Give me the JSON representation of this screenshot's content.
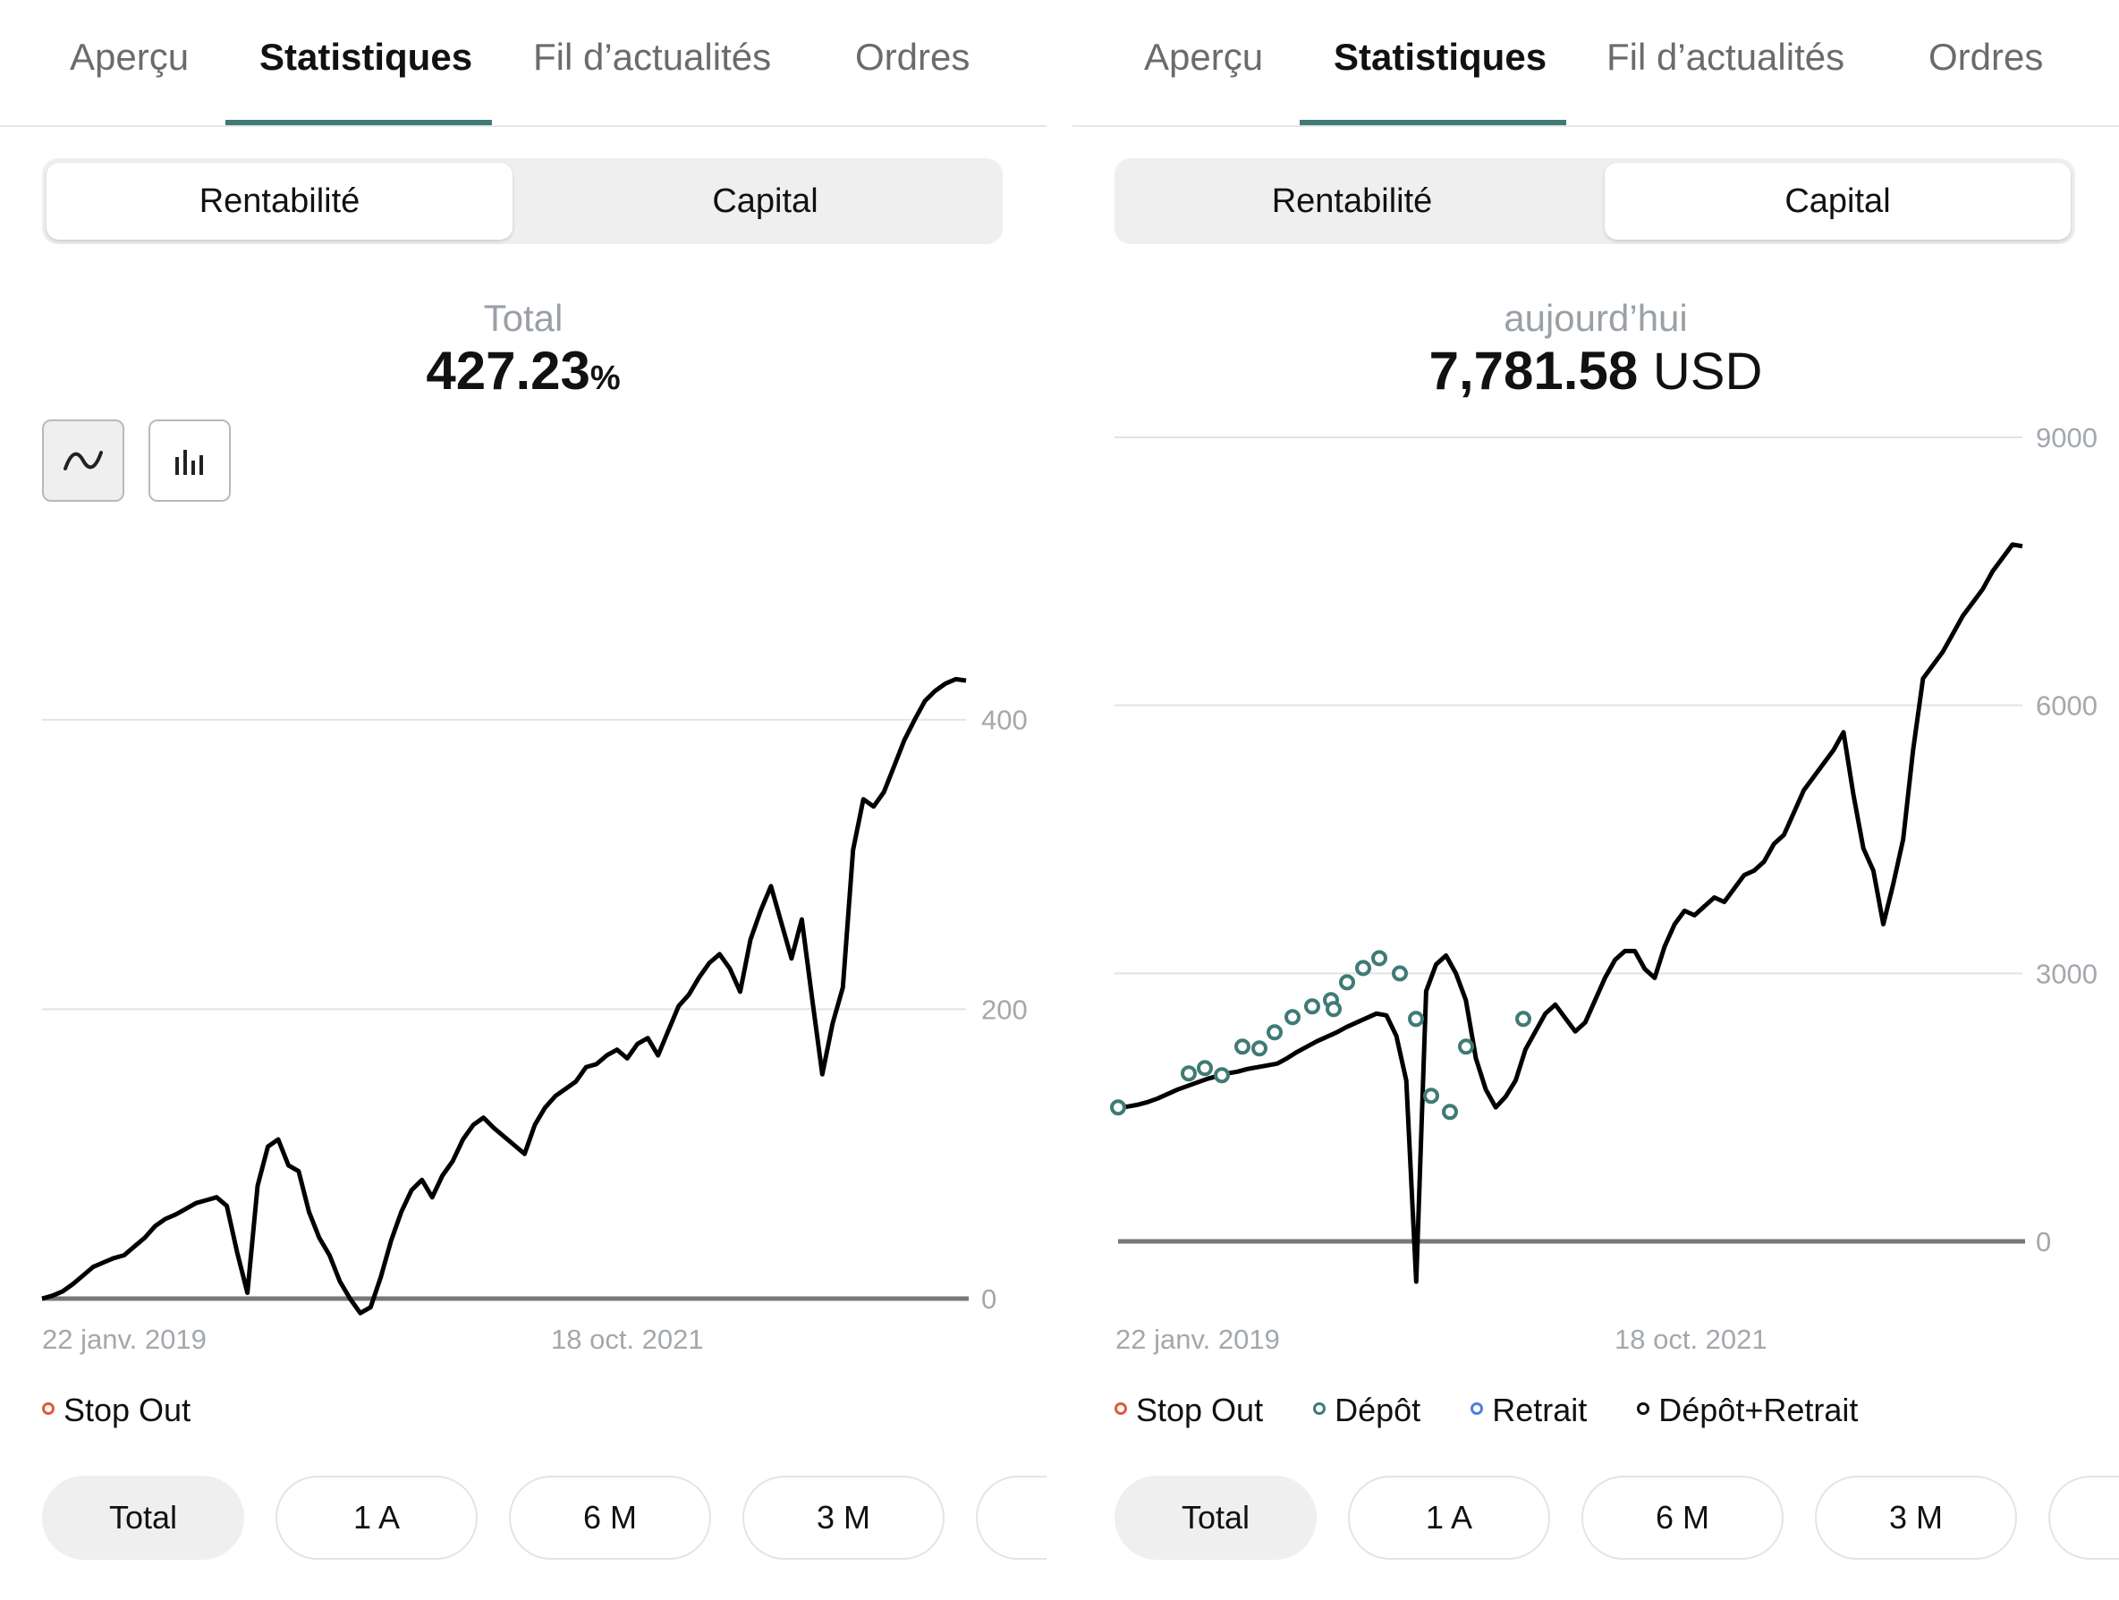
{
  "colors": {
    "accent": "#3f7a76",
    "line": "#000000",
    "baseline": "#777777",
    "grid": "#e3e3e3",
    "axis_text": "#a3a8ad",
    "stop_out": "#e0583c",
    "depot": "#3f7a76",
    "retrait": "#4f7ee0",
    "depot_retrait": "#111111"
  },
  "left": {
    "tabs": [
      "Aperçu",
      "Statistiques",
      "Fil d’actualités",
      "Ordres"
    ],
    "active_tab": "Statistiques",
    "segment": {
      "options": [
        "Rentabilité",
        "Capital"
      ],
      "active": "Rentabilité"
    },
    "summary": {
      "label": "Total",
      "value": "427.23",
      "unit": "%"
    },
    "chart_modes": [
      {
        "icon": "line-chart-icon",
        "active": true
      },
      {
        "icon": "bar-chart-icon",
        "active": false
      }
    ],
    "legend": [
      {
        "label": "Stop Out",
        "color": "stop_out"
      }
    ],
    "ranges": [
      "Total",
      "1 A",
      "6 M",
      "3 M",
      ""
    ],
    "active_range": "Total"
  },
  "right": {
    "tabs": [
      "Aperçu",
      "Statistiques",
      "Fil d’actualités",
      "Ordres"
    ],
    "active_tab": "Statistiques",
    "segment": {
      "options": [
        "Rentabilité",
        "Capital"
      ],
      "active": "Capital"
    },
    "summary": {
      "label": "aujourd’hui",
      "value": "7,781.58",
      "unit": "USD"
    },
    "legend": [
      {
        "label": "Stop Out",
        "color": "stop_out"
      },
      {
        "label": "Dépôt",
        "color": "depot"
      },
      {
        "label": "Retrait",
        "color": "retrait"
      },
      {
        "label": "Dépôt+Retrait",
        "color": "depot_retrait"
      }
    ],
    "ranges": [
      "Total",
      "1 A",
      "6 M",
      "3 M",
      ""
    ],
    "active_range": "Total"
  },
  "chart_data": [
    {
      "type": "line",
      "title": "",
      "ylabel": "",
      "ylim": [
        -55,
        440
      ],
      "yticks": [
        0,
        200,
        400
      ],
      "xticks": [
        "22 janv. 2019",
        "18 oct. 2021"
      ],
      "series": [
        {
          "values": [
            0,
            2,
            5,
            10,
            16,
            22,
            25,
            28,
            30,
            36,
            42,
            50,
            55,
            58,
            62,
            66,
            68,
            70,
            64,
            32,
            4,
            78,
            105,
            110,
            92,
            88,
            60,
            42,
            30,
            12,
            0,
            -10,
            -6,
            15,
            40,
            60,
            75,
            82,
            70,
            85,
            95,
            110,
            120,
            125,
            118,
            112,
            106,
            100,
            120,
            132,
            140,
            145,
            150,
            160,
            162,
            168,
            172,
            166,
            176,
            180,
            168,
            185,
            202,
            210,
            222,
            232,
            238,
            228,
            212,
            248,
            268,
            285,
            260,
            235,
            262,
            208,
            155,
            190,
            215,
            310,
            345,
            340,
            350,
            368,
            386,
            400,
            413,
            420,
            425,
            428,
            427
          ]
        }
      ]
    },
    {
      "type": "line",
      "title": "",
      "ylabel": "",
      "ylim": [
        -490,
        9000
      ],
      "yticks": [
        0,
        3000,
        6000,
        9000
      ],
      "xticks": [
        "22 janv. 2019",
        "18 oct. 2021"
      ],
      "series": [
        {
          "values": [
            1500,
            1510,
            1530,
            1560,
            1600,
            1650,
            1700,
            1740,
            1780,
            1820,
            1850,
            1880,
            1900,
            1930,
            1950,
            1970,
            1990,
            2050,
            2120,
            2180,
            2240,
            2290,
            2340,
            2400,
            2450,
            2500,
            2550,
            2530,
            2300,
            1800,
            -450,
            2800,
            3100,
            3200,
            3000,
            2700,
            2050,
            1700,
            1500,
            1620,
            1800,
            2150,
            2350,
            2550,
            2650,
            2500,
            2350,
            2450,
            2700,
            2950,
            3150,
            3250,
            3250,
            3050,
            2950,
            3300,
            3550,
            3700,
            3650,
            3750,
            3850,
            3800,
            3950,
            4100,
            4150,
            4250,
            4450,
            4550,
            4800,
            5050,
            5200,
            5350,
            5500,
            5700,
            5000,
            4400,
            4150,
            3550,
            4000,
            4500,
            5500,
            6300,
            6450,
            6600,
            6800,
            7000,
            7150,
            7300,
            7500,
            7650,
            7800,
            7782
          ]
        }
      ],
      "markers": [
        {
          "type": "Dépôt",
          "values": [
            1500,
            1880,
            1940,
            1860,
            2180,
            2160,
            2340,
            2510,
            2630,
            2700,
            2600,
            2900,
            3060,
            3170,
            3000,
            2490,
            1630,
            1450,
            2180,
            2490
          ]
        }
      ]
    }
  ]
}
